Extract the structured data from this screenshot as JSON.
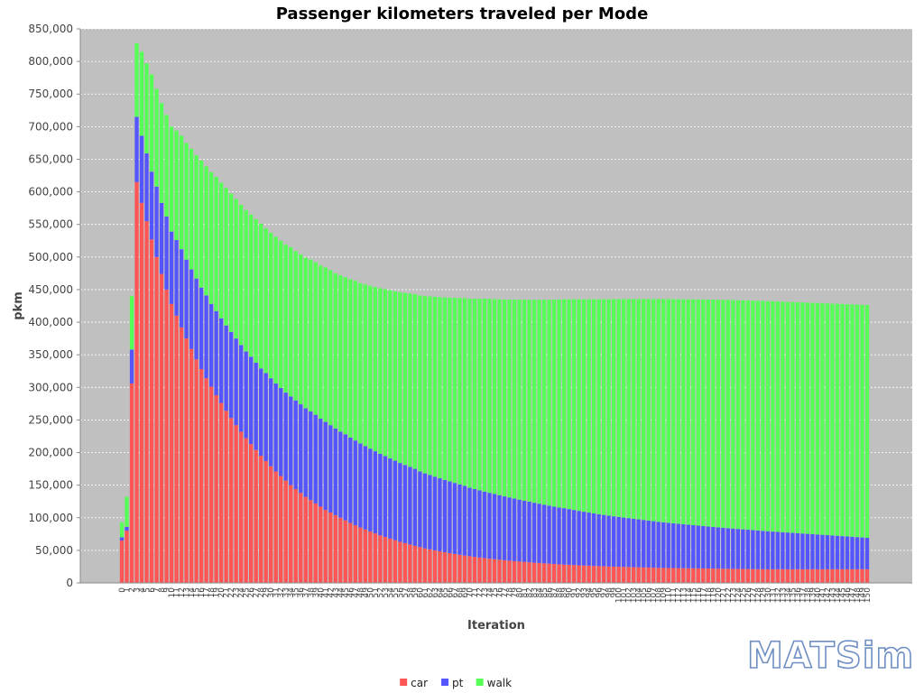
{
  "chart_data": {
    "type": "bar",
    "stacked": true,
    "title": "Passenger kilometers traveled per Mode",
    "xlabel": "Iteration",
    "ylabel": "pkm",
    "ylim": [
      0,
      850000
    ],
    "yticks": [
      0,
      50000,
      100000,
      150000,
      200000,
      250000,
      300000,
      350000,
      400000,
      450000,
      500000,
      550000,
      600000,
      650000,
      700000,
      750000,
      800000,
      850000
    ],
    "ytick_labels": [
      "0",
      "50,000",
      "100,000",
      "150,000",
      "200,000",
      "250,000",
      "300,000",
      "350,000",
      "400,000",
      "450,000",
      "500,000",
      "550,000",
      "600,000",
      "650,000",
      "700,000",
      "750,000",
      "800,000",
      "850,000"
    ],
    "grid": true,
    "legend_position": "bottom",
    "x": [
      0,
      1,
      2,
      3,
      4,
      5,
      6,
      7,
      8,
      9,
      10,
      11,
      12,
      13,
      14,
      15,
      16,
      17,
      18,
      19,
      20,
      21,
      22,
      23,
      24,
      25,
      26,
      27,
      28,
      29,
      30,
      31,
      32,
      33,
      34,
      35,
      36,
      37,
      38,
      39,
      40,
      41,
      42,
      43,
      44,
      45,
      46,
      47,
      48,
      49,
      50,
      51,
      52,
      53,
      54,
      55,
      56,
      57,
      58,
      59,
      60,
      61,
      62,
      63,
      64,
      65,
      66,
      67,
      68,
      69,
      70,
      71,
      72,
      73,
      74,
      75,
      76,
      77,
      78,
      79,
      80,
      81,
      82,
      83,
      84,
      85,
      86,
      87,
      88,
      89,
      90,
      91,
      92,
      93,
      94,
      95,
      96,
      97,
      98,
      99,
      100,
      101,
      102,
      103,
      104,
      105,
      106,
      107,
      108,
      109,
      110,
      111,
      112,
      113,
      114,
      115,
      116,
      117,
      118,
      119,
      120,
      121,
      122,
      123,
      124,
      125,
      126,
      127,
      128,
      129,
      130,
      131,
      132,
      133,
      134,
      135,
      136,
      137,
      138,
      139,
      140,
      141,
      142,
      143,
      144,
      145,
      146,
      147,
      148,
      149,
      150
    ],
    "x_tick_labels": [
      "0",
      "1",
      "2",
      "3",
      "4",
      "5",
      "6",
      "7",
      "8",
      "9",
      "10",
      "11",
      "12",
      "13",
      "14",
      "15",
      "16",
      "17",
      "18",
      "19",
      "20",
      "21",
      "22",
      "23",
      "24",
      "25",
      "26",
      "27",
      "28",
      "29",
      "30",
      "31",
      "32",
      "33",
      "34",
      "35",
      "36",
      "37",
      "38",
      "39",
      "40",
      "41",
      "42",
      "43",
      "44",
      "45",
      "46",
      "47",
      "48",
      "49",
      "50",
      "51",
      "52",
      "53",
      "54",
      "55",
      "56",
      "57",
      "58",
      "59",
      "60",
      "61",
      "62",
      "63",
      "64",
      "65",
      "66",
      "67",
      "68",
      "69",
      "70",
      "71",
      "72",
      "73",
      "74",
      "75",
      "76",
      "77",
      "78",
      "79",
      "80",
      "81",
      "82",
      "83",
      "84",
      "85",
      "86",
      "87",
      "88",
      "89",
      "90",
      "91",
      "92",
      "93",
      "94",
      "95",
      "96",
      "97",
      "98",
      "99",
      "100",
      "101",
      "102",
      "103",
      "104",
      "105",
      "106",
      "107",
      "108",
      "109",
      "110",
      "111",
      "112",
      "113",
      "114",
      "115",
      "116",
      "117",
      "118",
      "119",
      "120",
      "121",
      "122",
      "123",
      "124",
      "125",
      "126",
      "127",
      "128",
      "129",
      "130",
      "131",
      "132",
      "133",
      "134",
      "135",
      "136",
      "137",
      "138",
      "139",
      "140",
      "141",
      "142",
      "143",
      "144",
      "145",
      "146",
      "147",
      "148",
      "149",
      "150"
    ],
    "series": [
      {
        "name": "car",
        "color": "#ff5555",
        "values": [
          65000,
          80000,
          306000,
          615000,
          583000,
          555000,
          527000,
          500000,
          474000,
          450000,
          428000,
          410000,
          392000,
          375000,
          359000,
          343000,
          328000,
          314000,
          301000,
          288000,
          276000,
          264000,
          253000,
          242000,
          232000,
          222000,
          213000,
          204000,
          195000,
          187000,
          179000,
          171000,
          164000,
          157000,
          150000,
          144000,
          138000,
          132000,
          127000,
          122000,
          117000,
          112000,
          108000,
          104000,
          100000,
          96000,
          92000,
          88500,
          85000,
          82000,
          79000,
          76000,
          73000,
          70500,
          68000,
          65500,
          63000,
          61000,
          59000,
          57000,
          55000,
          53000,
          51500,
          50000,
          48500,
          47000,
          45700,
          44400,
          43200,
          42000,
          41000,
          40000,
          39000,
          38100,
          37200,
          36400,
          35600,
          34800,
          34100,
          33400,
          32800,
          32200,
          31600,
          31000,
          30500,
          30000,
          29500,
          29000,
          28600,
          28200,
          27800,
          27400,
          27000,
          26700,
          26400,
          26100,
          25800,
          25500,
          25200,
          25000,
          24800,
          24600,
          24400,
          24200,
          24000,
          23800,
          23600,
          23400,
          23200,
          23000,
          22900,
          22800,
          22700,
          22600,
          22500,
          22400,
          22300,
          22200,
          22100,
          22000,
          21900,
          21800,
          21700,
          21600,
          21500,
          21400,
          21300,
          21200,
          21100,
          21000,
          21000,
          21000,
          21000,
          21000,
          21000,
          21000,
          21000,
          21000,
          21000,
          21000,
          21000,
          21000,
          21000,
          21000,
          21000,
          21000,
          21000,
          21000,
          21000,
          21000,
          21000
        ]
      },
      {
        "name": "pt",
        "color": "#5555ff",
        "values": [
          5000,
          6000,
          52000,
          100000,
          103000,
          104000,
          104000,
          108000,
          109000,
          112000,
          111000,
          116000,
          120000,
          121000,
          122000,
          124000,
          125000,
          127000,
          127000,
          129000,
          130000,
          131000,
          132000,
          133000,
          133000,
          133000,
          134000,
          134000,
          134000,
          135000,
          135000,
          135000,
          135000,
          135000,
          136000,
          136000,
          136000,
          136000,
          136000,
          136000,
          135000,
          135000,
          134000,
          133000,
          132000,
          132000,
          131000,
          130000,
          129000,
          128000,
          127000,
          126000,
          125000,
          124000,
          123000,
          122000,
          121000,
          120000,
          119000,
          118000,
          116000,
          115000,
          114000,
          113000,
          112000,
          111000,
          110000,
          109000,
          108000,
          107000,
          105000,
          104000,
          103000,
          102000,
          101000,
          100000,
          99000,
          98000,
          97000,
          96000,
          95000,
          94000,
          93000,
          92000,
          91000,
          90000,
          89000,
          88000,
          87000,
          86500,
          85500,
          84500,
          83500,
          82500,
          81500,
          80500,
          79500,
          78800,
          78000,
          77200,
          76500,
          75700,
          75000,
          74200,
          73500,
          72800,
          72000,
          71300,
          70600,
          70000,
          69300,
          68600,
          68000,
          67400,
          66800,
          66200,
          65600,
          65000,
          64400,
          63800,
          63300,
          62800,
          62300,
          61800,
          61300,
          60800,
          60300,
          59800,
          59300,
          58800,
          58300,
          57800,
          57300,
          56800,
          56300,
          55800,
          55300,
          54800,
          54300,
          53800,
          53300,
          52800,
          52300,
          51800,
          51300,
          50800,
          50300,
          49800,
          49300,
          48800,
          48300
        ]
      },
      {
        "name": "walk",
        "color": "#55ff55",
        "values": [
          23000,
          46000,
          82000,
          113000,
          129000,
          138000,
          149000,
          150000,
          153000,
          156000,
          161000,
          168000,
          174000,
          179000,
          185000,
          189000,
          195000,
          198000,
          202000,
          206000,
          208000,
          211000,
          212000,
          214000,
          215000,
          217000,
          218000,
          220000,
          222000,
          222000,
          223000,
          225000,
          226000,
          227000,
          229000,
          229000,
          230000,
          231000,
          233000,
          234000,
          235000,
          237000,
          238000,
          238000,
          240000,
          241000,
          243000,
          245000,
          246000,
          248000,
          250000,
          252000,
          254000,
          256000,
          258000,
          260000,
          262000,
          264000,
          266000,
          268000,
          270000,
          272000,
          274000,
          276000,
          278000,
          280000,
          282000,
          284000,
          286000,
          288000,
          290000,
          292000,
          294000,
          296000,
          297500,
          299000,
          300500,
          302000,
          303600,
          305200,
          306800,
          308300,
          309800,
          311400,
          313000,
          314500,
          316000,
          317600,
          319200,
          320500,
          321900,
          323300,
          324700,
          326000,
          327300,
          328600,
          329900,
          331000,
          332100,
          333200,
          334200,
          335200,
          336200,
          337200,
          338100,
          339000,
          339900,
          340800,
          341700,
          342600,
          343300,
          344000,
          344600,
          345200,
          345800,
          346400,
          347000,
          347600,
          348200,
          348800,
          349300,
          349700,
          350100,
          350500,
          350900,
          351300,
          351700,
          352100,
          352500,
          352900,
          353100,
          353300,
          353500,
          353700,
          353900,
          354100,
          354300,
          354500,
          354700,
          354900,
          355100,
          355300,
          355500,
          355700,
          355900,
          356100,
          356300,
          356500,
          356700,
          356900,
          357100
        ]
      }
    ]
  },
  "legend": {
    "items": [
      {
        "label": "car",
        "color": "#ff5555"
      },
      {
        "label": "pt",
        "color": "#5555ff"
      },
      {
        "label": "walk",
        "color": "#55ff55"
      }
    ]
  },
  "logo": {
    "text": "MATSim"
  }
}
